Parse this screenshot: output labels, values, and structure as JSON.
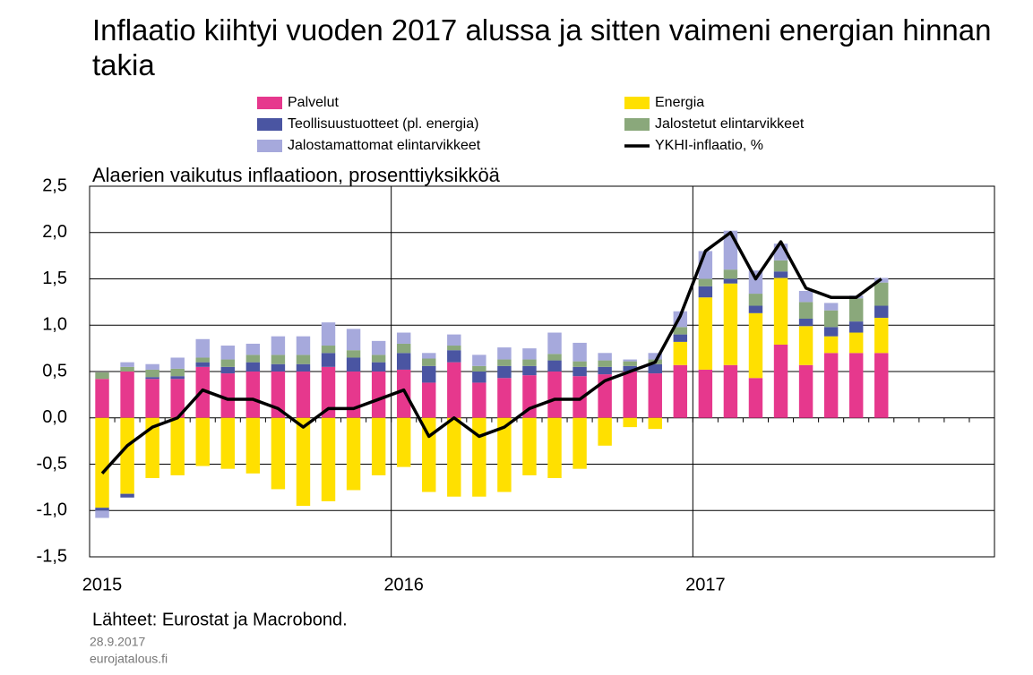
{
  "chart_data": {
    "type": "bar",
    "stacked": true,
    "title": "Inflaatio kiihtyi vuoden 2017 alussa ja sitten vaimeni energian hinnan takia",
    "subtitle": "Alaerien vaikutus inflaatioon, prosenttiyksikköä",
    "source": "Lähteet: Eurostat ja Macrobond.",
    "date": "28.9.2017",
    "site": "eurojatalous.fi",
    "categories": [
      "2015",
      null,
      null,
      null,
      null,
      null,
      null,
      null,
      null,
      null,
      null,
      null,
      "2016",
      null,
      null,
      null,
      null,
      null,
      null,
      null,
      null,
      null,
      null,
      null,
      "2017",
      null,
      null,
      null,
      null,
      null,
      null,
      null,
      null,
      null,
      null,
      null
    ],
    "ylim": [
      -1.5,
      2.5
    ],
    "yticks": [
      {
        "value": 2.5,
        "label": "2,5"
      },
      {
        "value": 2.0,
        "label": "2,0"
      },
      {
        "value": 1.5,
        "label": "1,5"
      },
      {
        "value": 1.0,
        "label": "1,0"
      },
      {
        "value": 0.5,
        "label": "0,5"
      },
      {
        "value": 0,
        "label": "0,0"
      },
      {
        "value": -0.5,
        "label": "-0,5"
      },
      {
        "value": -1.0,
        "label": "-1,0"
      },
      {
        "value": -1.5,
        "label": "-1,5"
      }
    ],
    "grid": true,
    "series": [
      {
        "name": "Palvelut",
        "color": "#e6388d",
        "values": [
          0.42,
          0.5,
          0.42,
          0.42,
          0.55,
          0.48,
          0.5,
          0.5,
          0.5,
          0.55,
          0.5,
          0.5,
          0.52,
          0.38,
          0.6,
          0.38,
          0.43,
          0.46,
          0.5,
          0.45,
          0.47,
          0.5,
          0.48,
          0.57,
          0.52,
          0.57,
          0.43,
          0.79,
          0.57,
          0.7,
          0.7,
          0.7,
          null,
          null,
          null,
          null
        ]
      },
      {
        "name": "Energia",
        "color": "#ffe000",
        "values": [
          -0.97,
          -0.82,
          -0.65,
          -0.62,
          -0.52,
          -0.55,
          -0.6,
          -0.77,
          -0.95,
          -0.9,
          -0.78,
          -0.62,
          -0.53,
          -0.8,
          -0.85,
          -0.85,
          -0.8,
          -0.62,
          -0.65,
          -0.55,
          -0.3,
          -0.1,
          -0.12,
          0.25,
          0.78,
          0.88,
          0.7,
          0.72,
          0.42,
          0.18,
          0.22,
          0.38,
          null,
          null,
          null,
          null
        ]
      },
      {
        "name": "Teollisuustuotteet (pl. energia)",
        "color": "#4a55a2",
        "values": [
          -0.03,
          -0.04,
          0.02,
          0.03,
          0.05,
          0.07,
          0.1,
          0.08,
          0.08,
          0.15,
          0.15,
          0.1,
          0.18,
          0.18,
          0.13,
          0.12,
          0.13,
          0.1,
          0.12,
          0.1,
          0.08,
          0.06,
          0.1,
          0.08,
          0.12,
          0.05,
          0.08,
          0.07,
          0.08,
          0.1,
          0.12,
          0.13,
          null,
          null,
          null,
          null
        ]
      },
      {
        "name": "Jalostetut elintarvikkeet",
        "color": "#8aa87b",
        "values": [
          0.07,
          0.05,
          0.08,
          0.08,
          0.05,
          0.08,
          0.08,
          0.1,
          0.1,
          0.08,
          0.08,
          0.08,
          0.1,
          0.08,
          0.05,
          0.06,
          0.07,
          0.07,
          0.07,
          0.06,
          0.07,
          0.05,
          0.05,
          0.08,
          0.08,
          0.1,
          0.13,
          0.12,
          0.18,
          0.18,
          0.25,
          0.25,
          null,
          null,
          null,
          null
        ]
      },
      {
        "name": "Jalostamattomat elintarvikkeet",
        "color": "#a6a9dc",
        "values": [
          -0.08,
          0.05,
          0.06,
          0.12,
          0.2,
          0.15,
          0.12,
          0.2,
          0.2,
          0.25,
          0.23,
          0.15,
          0.12,
          0.06,
          0.12,
          0.12,
          0.13,
          0.12,
          0.23,
          0.2,
          0.08,
          0.02,
          0.07,
          0.17,
          0.3,
          0.42,
          0.25,
          0.18,
          0.12,
          0.08,
          0.03,
          0.05,
          null,
          null,
          null,
          null
        ]
      },
      {
        "name": "YKHI-inflaatio, %",
        "color": "#000000",
        "type": "line",
        "values": [
          -0.6,
          -0.3,
          -0.1,
          0.0,
          0.3,
          0.2,
          0.2,
          0.1,
          -0.1,
          0.1,
          0.1,
          0.2,
          0.3,
          -0.2,
          0.0,
          -0.2,
          -0.1,
          0.1,
          0.2,
          0.2,
          0.4,
          0.5,
          0.6,
          1.1,
          1.8,
          2.0,
          1.5,
          1.9,
          1.4,
          1.3,
          1.3,
          1.5,
          null,
          null,
          null,
          null
        ]
      }
    ]
  }
}
